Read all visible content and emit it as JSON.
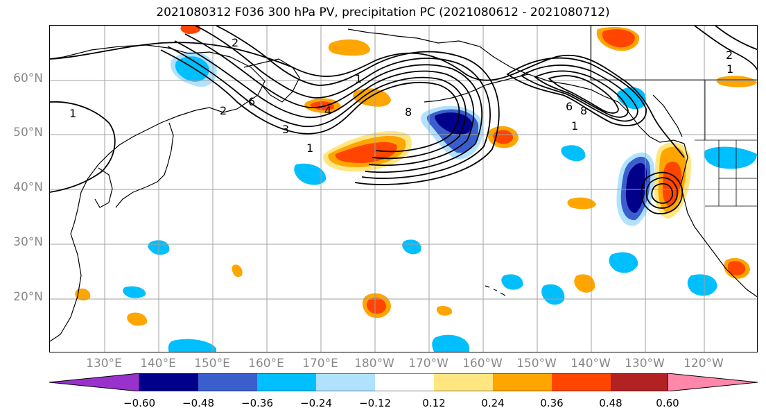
{
  "title": "2021080312 F036 300 hPa PV, precipitation PC (2021080612 - 2021080712)",
  "axes": {
    "lat_labels": [
      "60°N",
      "50°N",
      "40°N",
      "30°N",
      "20°N"
    ],
    "lon_labels": [
      "130°E",
      "140°E",
      "150°E",
      "160°E",
      "170°E",
      "180°W",
      "170°W",
      "160°W",
      "150°W",
      "140°W",
      "130°W",
      "120°W"
    ]
  },
  "colorbar": {
    "colors": [
      "#9932cc",
      "#00008b",
      "#3a5fcd",
      "#00bfff",
      "#b0e2ff",
      "#ffffff",
      "#ffe680",
      "#ffa500",
      "#ff4500",
      "#b22222",
      "#ff88aa"
    ],
    "ticks": [
      "−0.60",
      "−0.48",
      "−0.36",
      "−0.24",
      "−0.12",
      "0.12",
      "0.24",
      "0.36",
      "0.48",
      "0.60"
    ]
  },
  "contour_labels": [
    "1",
    "2",
    "3",
    "4",
    "6",
    "8",
    "1",
    "8",
    "6",
    "1",
    "2",
    "1",
    "2",
    "1"
  ]
}
